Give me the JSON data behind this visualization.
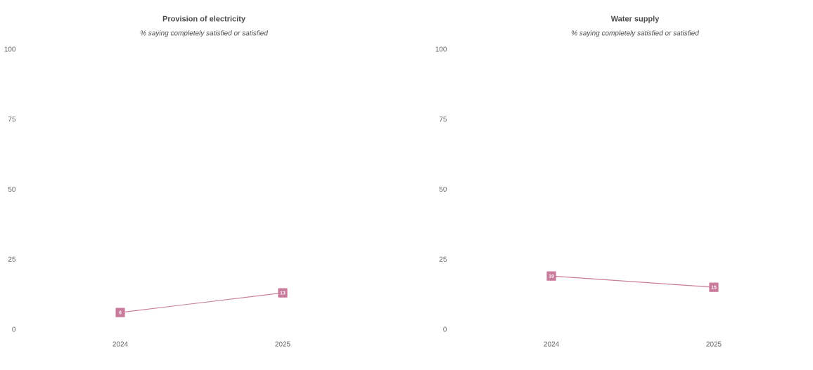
{
  "chart_data": [
    {
      "type": "line",
      "title": "Provision of electricity",
      "subtitle": "% saying completely satisfied or satisfied",
      "categories": [
        "2024",
        "2025"
      ],
      "series": [
        {
          "color": "#c97b9c",
          "values": [
            6,
            13
          ]
        }
      ],
      "ylim": [
        0,
        100
      ],
      "yticks": [
        0,
        25,
        50,
        75,
        100
      ],
      "marker": "square",
      "data_labels": true
    },
    {
      "type": "line",
      "title": "Water supply",
      "subtitle": "% saying completely satisfied or satisfied",
      "categories": [
        "2024",
        "2025"
      ],
      "series": [
        {
          "color": "#c97b9c",
          "values": [
            19,
            15
          ]
        }
      ],
      "ylim": [
        0,
        100
      ],
      "yticks": [
        0,
        25,
        50,
        75,
        100
      ],
      "marker": "square",
      "data_labels": true
    }
  ]
}
